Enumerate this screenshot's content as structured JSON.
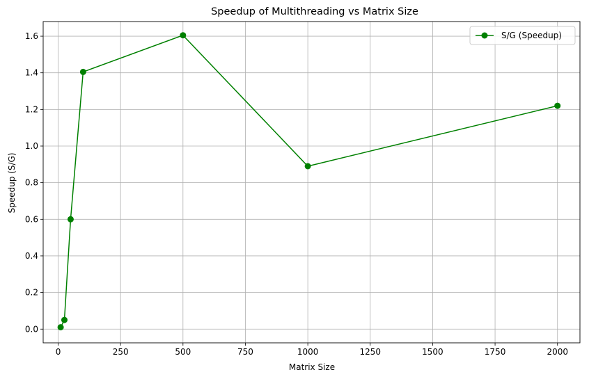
{
  "chart_data": {
    "type": "line",
    "title": "Speedup of Multithreading vs Matrix Size",
    "xlabel": "Matrix Size",
    "ylabel": "Speedup (S/G)",
    "xlim": [
      -60,
      2090
    ],
    "ylim": [
      -0.075,
      1.68
    ],
    "x_ticks": [
      0,
      250,
      500,
      750,
      1000,
      1250,
      1500,
      1750,
      2000
    ],
    "y_ticks": [
      0.0,
      0.2,
      0.4,
      0.6,
      0.8,
      1.0,
      1.2,
      1.4,
      1.6
    ],
    "y_tick_labels": [
      "0.0",
      "0.2",
      "0.4",
      "0.6",
      "0.8",
      "1.0",
      "1.2",
      "1.4",
      "1.6"
    ],
    "grid": true,
    "legend_position": "top-right",
    "series": [
      {
        "name": "S/G (Speedup)",
        "color": "#008000",
        "marker": "circle",
        "x": [
          10,
          25,
          50,
          100,
          500,
          1000,
          2000
        ],
        "y": [
          0.01,
          0.05,
          0.6,
          1.405,
          1.605,
          0.89,
          1.22
        ]
      }
    ]
  }
}
